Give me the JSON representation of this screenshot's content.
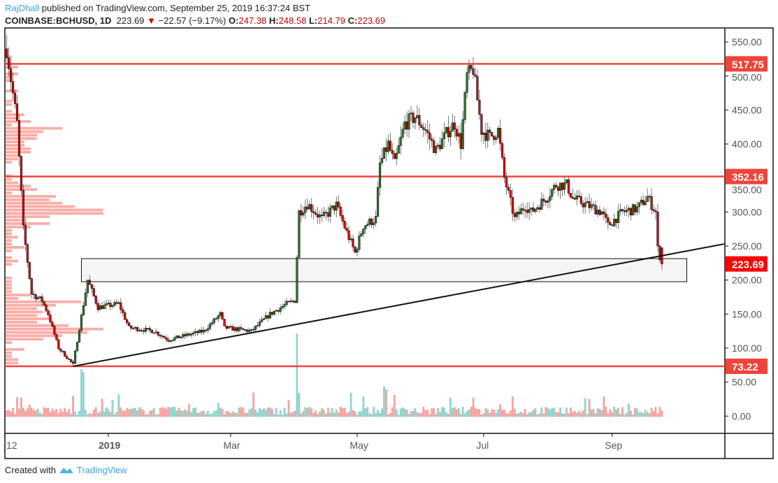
{
  "header": {
    "author": "RajDhall",
    "published": "published on TradingView.com, September 25, 2019 16:37:24 BST",
    "symbol": "COINBASE:BCHUSD, 1D",
    "last": "223.69",
    "change": "−22.57 (−9.17%)",
    "o_label": "O:",
    "o": "247.38",
    "h_label": "H:",
    "h": "248.58",
    "l_label": "L:",
    "l": "214.79",
    "c_label": "C:",
    "c": "223.69"
  },
  "footer": {
    "created_with": "Created with",
    "brand": "TradingView"
  },
  "colors": {
    "up": "#2e7d32",
    "down": "#e00000",
    "vol_up": "#8fd3cc",
    "vol_down": "#f5a3a0",
    "level": "#f0443a",
    "profile": "#f7a09a",
    "last_badge": "#ff0000"
  },
  "chart_data": {
    "type": "candlestick",
    "symbol": "COINBASE:BCHUSD",
    "interval": "1D",
    "ylim": [
      -25,
      575
    ],
    "y_ticks": [
      "550.00",
      "500.00",
      "450.00",
      "400.00",
      "350.00",
      "300.00",
      "250.00",
      "200.00",
      "150.00",
      "100.00",
      "50.00",
      "0.00"
    ],
    "y_tick_values": [
      550,
      500,
      450,
      400,
      350,
      300,
      250,
      200,
      150,
      100,
      50,
      0
    ],
    "x_ticks": [
      {
        "label": "12",
        "date": "2018-11-12"
      },
      {
        "label": "2019",
        "date": "2019-01-01"
      },
      {
        "label": "Mar",
        "date": "2019-03-01"
      },
      {
        "label": "May",
        "date": "2019-05-01"
      },
      {
        "label": "Jul",
        "date": "2019-07-01"
      },
      {
        "label": "Sep",
        "date": "2019-09-01"
      }
    ],
    "levels": [
      {
        "price": 517.75,
        "label": "517.75"
      },
      {
        "price": 352.16,
        "label": "352.16"
      },
      {
        "price": 73.22,
        "label": "73.22"
      }
    ],
    "last_price": {
      "price": 223.69,
      "label": "223.69"
    },
    "last_candle": {
      "date": "2019-09-25",
      "open": 247.38,
      "high": 248.58,
      "low": 214.79,
      "close": 223.69
    },
    "trendline": {
      "start": [
        "2018-12-15",
        73.22
      ],
      "end": [
        "2019-10-25",
        253
      ]
    },
    "zone": {
      "start": "2018-12-19",
      "end": "2019-10-07",
      "top": 231.5,
      "bottom": 197.6
    },
    "closes": [
      [
        "2018-11-13",
        540
      ],
      [
        "2018-11-18",
        430
      ],
      [
        "2018-11-21",
        275
      ],
      [
        "2018-11-25",
        180
      ],
      [
        "2018-11-30",
        170
      ],
      [
        "2018-12-03",
        150
      ],
      [
        "2018-12-08",
        100
      ],
      [
        "2018-12-15",
        76
      ],
      [
        "2018-12-22",
        200
      ],
      [
        "2018-12-27",
        160
      ],
      [
        "2019-01-06",
        165
      ],
      [
        "2019-01-11",
        130
      ],
      [
        "2019-01-23",
        125
      ],
      [
        "2019-01-30",
        112
      ],
      [
        "2019-02-09",
        120
      ],
      [
        "2019-02-16",
        125
      ],
      [
        "2019-02-24",
        150
      ],
      [
        "2019-02-26",
        130
      ],
      [
        "2019-03-11",
        125
      ],
      [
        "2019-03-20",
        150
      ],
      [
        "2019-03-28",
        165
      ],
      [
        "2019-04-01",
        170
      ],
      [
        "2019-04-03",
        300
      ],
      [
        "2019-04-07",
        312
      ],
      [
        "2019-04-14",
        290
      ],
      [
        "2019-04-21",
        310
      ],
      [
        "2019-04-26",
        270
      ],
      [
        "2019-04-30",
        240
      ],
      [
        "2019-05-04",
        280
      ],
      [
        "2019-05-10",
        290
      ],
      [
        "2019-05-12",
        370
      ],
      [
        "2019-05-16",
        400
      ],
      [
        "2019-05-19",
        370
      ],
      [
        "2019-05-24",
        430
      ],
      [
        "2019-05-29",
        440
      ],
      [
        "2019-06-03",
        420
      ],
      [
        "2019-06-08",
        390
      ],
      [
        "2019-06-14",
        420
      ],
      [
        "2019-06-17",
        430
      ],
      [
        "2019-06-20",
        400
      ],
      [
        "2019-06-23",
        500
      ],
      [
        "2019-06-26",
        510
      ],
      [
        "2019-06-30",
        420
      ],
      [
        "2019-07-04",
        410
      ],
      [
        "2019-07-08",
        420
      ],
      [
        "2019-07-11",
        350
      ],
      [
        "2019-07-16",
        290
      ],
      [
        "2019-07-21",
        310
      ],
      [
        "2019-07-24",
        300
      ],
      [
        "2019-07-31",
        320
      ],
      [
        "2019-08-05",
        340
      ],
      [
        "2019-08-10",
        340
      ],
      [
        "2019-08-13",
        320
      ],
      [
        "2019-08-20",
        310
      ],
      [
        "2019-08-27",
        300
      ],
      [
        "2019-08-30",
        280
      ],
      [
        "2019-09-06",
        300
      ],
      [
        "2019-09-13",
        305
      ],
      [
        "2019-09-18",
        322
      ],
      [
        "2019-09-22",
        300
      ],
      [
        "2019-09-23",
        246
      ],
      [
        "2019-09-25",
        223.69
      ]
    ],
    "volume_spikes": [
      [
        "2018-12-19",
        70
      ],
      [
        "2018-12-20",
        65
      ],
      [
        "2019-04-02",
        122
      ],
      [
        "2019-04-03",
        35
      ],
      [
        "2019-05-14",
        45
      ],
      [
        "2019-05-15",
        40
      ],
      [
        "2019-06-26",
        28
      ],
      [
        "2019-07-15",
        30
      ]
    ]
  }
}
